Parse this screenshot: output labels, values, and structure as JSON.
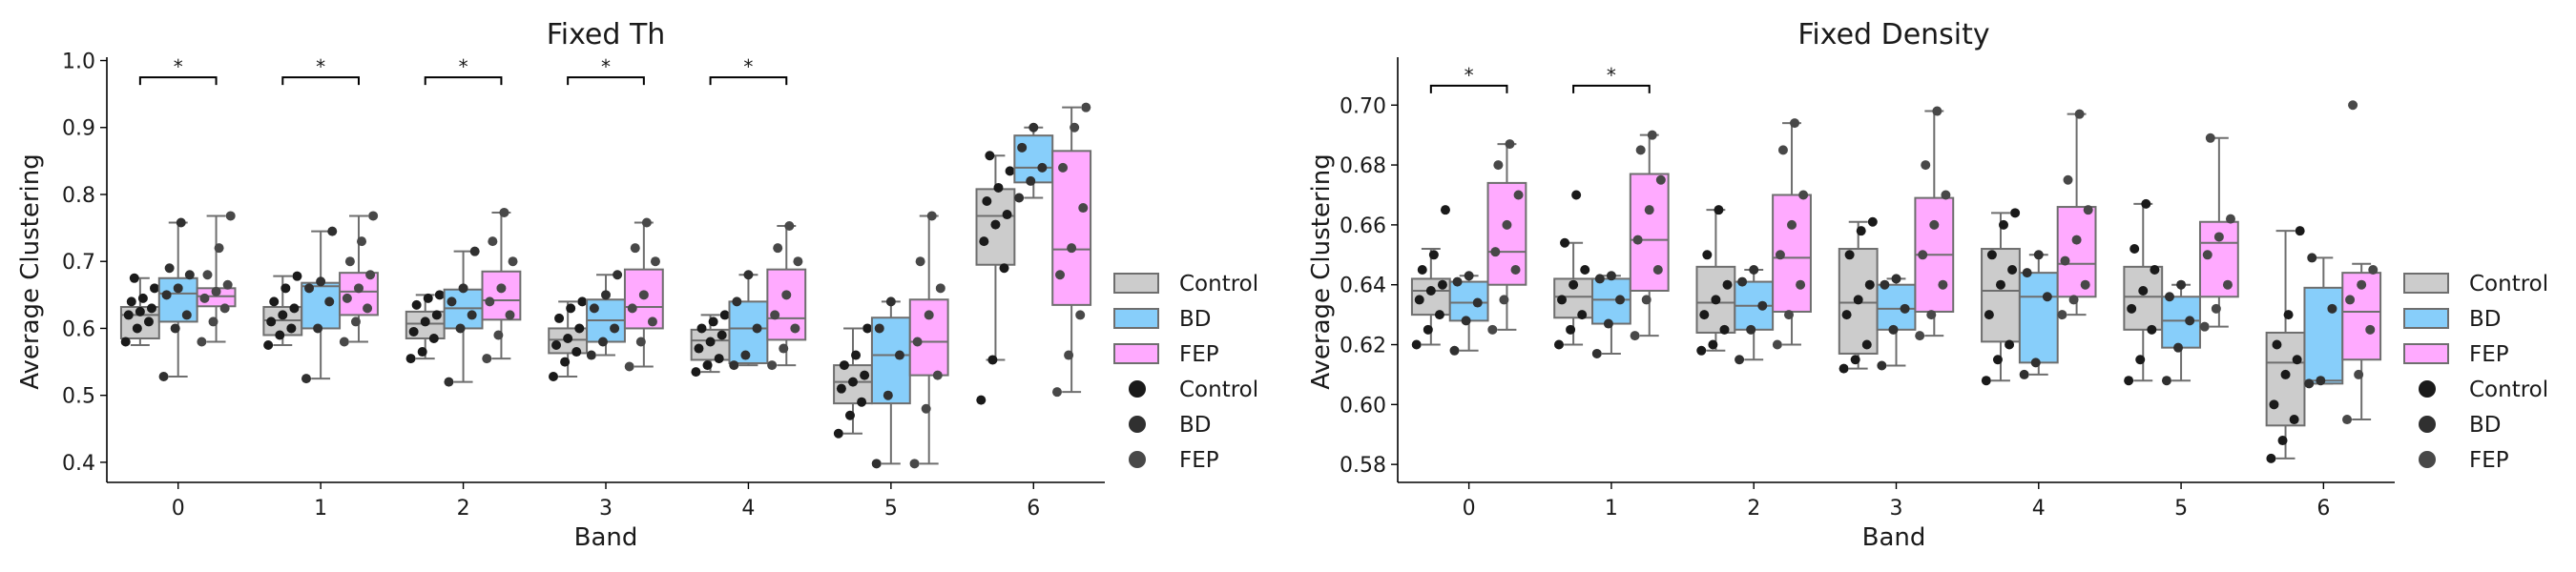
{
  "chart_data": [
    {
      "type": "box",
      "title": "Fixed Th",
      "xlabel": "Band",
      "ylabel": "Average Clustering",
      "categories": [
        "0",
        "1",
        "2",
        "3",
        "4",
        "5",
        "6"
      ],
      "ylim": [
        0.37,
        1.005
      ],
      "yticks": [
        0.4,
        0.5,
        0.6,
        0.7,
        0.8,
        0.9,
        1.0
      ],
      "ytick_labels": [
        "0.4",
        "0.5",
        "0.6",
        "0.7",
        "0.8",
        "0.9",
        "1.0"
      ],
      "legend_box_entries": [
        "Control",
        "BD",
        "FEP"
      ],
      "legend_point_entries": [
        "Control",
        "BD",
        "FEP"
      ],
      "significance": [
        {
          "category": "0",
          "label": "*",
          "y": 0.975
        },
        {
          "category": "1",
          "label": "*",
          "y": 0.975
        },
        {
          "category": "2",
          "label": "*",
          "y": 0.975
        },
        {
          "category": "3",
          "label": "*",
          "y": 0.975
        },
        {
          "category": "4",
          "label": "*",
          "y": 0.975
        }
      ],
      "series": [
        {
          "name": "Control",
          "boxes": [
            {
              "whislo": 0.575,
              "q1": 0.585,
              "med": 0.62,
              "q3": 0.632,
              "whishi": 0.675,
              "points": [
                0.58,
                0.6,
                0.61,
                0.62,
                0.625,
                0.63,
                0.64,
                0.645,
                0.66,
                0.675
              ]
            },
            {
              "whislo": 0.575,
              "q1": 0.59,
              "med": 0.612,
              "q3": 0.632,
              "whishi": 0.678,
              "points": [
                0.575,
                0.59,
                0.6,
                0.61,
                0.62,
                0.63,
                0.64,
                0.66,
                0.678
              ]
            },
            {
              "whislo": 0.555,
              "q1": 0.585,
              "med": 0.607,
              "q3": 0.625,
              "whishi": 0.65,
              "points": [
                0.555,
                0.565,
                0.585,
                0.595,
                0.61,
                0.62,
                0.635,
                0.645,
                0.65
              ]
            },
            {
              "whislo": 0.528,
              "q1": 0.563,
              "med": 0.583,
              "q3": 0.6,
              "whishi": 0.64,
              "points": [
                0.528,
                0.55,
                0.565,
                0.575,
                0.585,
                0.6,
                0.615,
                0.63,
                0.64
              ]
            },
            {
              "whislo": 0.535,
              "q1": 0.553,
              "med": 0.582,
              "q3": 0.598,
              "whishi": 0.62,
              "points": [
                0.535,
                0.545,
                0.555,
                0.57,
                0.58,
                0.59,
                0.6,
                0.61,
                0.62
              ]
            },
            {
              "whislo": 0.443,
              "q1": 0.488,
              "med": 0.52,
              "q3": 0.545,
              "whishi": 0.6,
              "points": [
                0.443,
                0.47,
                0.49,
                0.51,
                0.52,
                0.53,
                0.545,
                0.56,
                0.6
              ]
            },
            {
              "whislo": 0.553,
              "q1": 0.695,
              "med": 0.768,
              "q3": 0.808,
              "whishi": 0.858,
              "points": [
                0.493,
                0.553,
                0.69,
                0.73,
                0.755,
                0.77,
                0.79,
                0.81,
                0.835,
                0.858
              ]
            }
          ]
        },
        {
          "name": "BD",
          "boxes": [
            {
              "whislo": 0.528,
              "q1": 0.61,
              "med": 0.652,
              "q3": 0.675,
              "whishi": 0.758,
              "points": [
                0.528,
                0.6,
                0.62,
                0.65,
                0.66,
                0.68,
                0.69,
                0.758
              ]
            },
            {
              "whislo": 0.525,
              "q1": 0.6,
              "med": 0.663,
              "q3": 0.668,
              "whishi": 0.745,
              "points": [
                0.525,
                0.6,
                0.64,
                0.66,
                0.67,
                0.745
              ]
            },
            {
              "whislo": 0.52,
              "q1": 0.6,
              "med": 0.63,
              "q3": 0.658,
              "whishi": 0.715,
              "points": [
                0.52,
                0.6,
                0.62,
                0.64,
                0.66,
                0.715
              ]
            },
            {
              "whislo": 0.56,
              "q1": 0.58,
              "med": 0.612,
              "q3": 0.643,
              "whishi": 0.68,
              "points": [
                0.56,
                0.58,
                0.6,
                0.63,
                0.65,
                0.68
              ]
            },
            {
              "whislo": 0.545,
              "q1": 0.548,
              "med": 0.6,
              "q3": 0.64,
              "whishi": 0.68,
              "points": [
                0.545,
                0.56,
                0.6,
                0.64,
                0.68
              ]
            },
            {
              "whislo": 0.398,
              "q1": 0.488,
              "med": 0.56,
              "q3": 0.616,
              "whishi": 0.64,
              "points": [
                0.398,
                0.5,
                0.56,
                0.6,
                0.64
              ]
            },
            {
              "whislo": 0.795,
              "q1": 0.818,
              "med": 0.84,
              "q3": 0.888,
              "whishi": 0.9,
              "points": [
                0.795,
                0.82,
                0.84,
                0.87,
                0.9
              ]
            }
          ]
        },
        {
          "name": "FEP",
          "boxes": [
            {
              "whislo": 0.58,
              "q1": 0.633,
              "med": 0.648,
              "q3": 0.66,
              "whishi": 0.768,
              "points": [
                0.58,
                0.61,
                0.63,
                0.645,
                0.655,
                0.665,
                0.68,
                0.72,
                0.768
              ]
            },
            {
              "whislo": 0.58,
              "q1": 0.62,
              "med": 0.655,
              "q3": 0.683,
              "whishi": 0.768,
              "points": [
                0.58,
                0.61,
                0.63,
                0.645,
                0.66,
                0.68,
                0.7,
                0.73,
                0.768
              ]
            },
            {
              "whislo": 0.555,
              "q1": 0.613,
              "med": 0.642,
              "q3": 0.685,
              "whishi": 0.773,
              "points": [
                0.555,
                0.59,
                0.62,
                0.64,
                0.66,
                0.7,
                0.73,
                0.773
              ]
            },
            {
              "whislo": 0.543,
              "q1": 0.6,
              "med": 0.632,
              "q3": 0.688,
              "whishi": 0.758,
              "points": [
                0.543,
                0.58,
                0.61,
                0.63,
                0.65,
                0.7,
                0.72,
                0.758
              ]
            },
            {
              "whislo": 0.545,
              "q1": 0.583,
              "med": 0.615,
              "q3": 0.688,
              "whishi": 0.753,
              "points": [
                0.545,
                0.57,
                0.6,
                0.62,
                0.65,
                0.7,
                0.72,
                0.753
              ]
            },
            {
              "whislo": 0.398,
              "q1": 0.53,
              "med": 0.58,
              "q3": 0.643,
              "whishi": 0.768,
              "points": [
                0.398,
                0.48,
                0.53,
                0.58,
                0.62,
                0.66,
                0.7,
                0.768
              ]
            },
            {
              "whislo": 0.505,
              "q1": 0.635,
              "med": 0.718,
              "q3": 0.865,
              "whishi": 0.93,
              "points": [
                0.505,
                0.56,
                0.62,
                0.68,
                0.72,
                0.78,
                0.84,
                0.9,
                0.93
              ]
            }
          ]
        }
      ]
    },
    {
      "type": "box",
      "title": "Fixed Density",
      "xlabel": "Band",
      "ylabel": "Average Clustering",
      "categories": [
        "0",
        "1",
        "2",
        "3",
        "4",
        "5",
        "6"
      ],
      "ylim": [
        0.574,
        0.716
      ],
      "yticks": [
        0.58,
        0.6,
        0.62,
        0.64,
        0.66,
        0.68,
        0.7
      ],
      "ytick_labels": [
        "0.58",
        "0.60",
        "0.62",
        "0.64",
        "0.66",
        "0.68",
        "0.70"
      ],
      "legend_box_entries": [
        "Control",
        "BD",
        "FEP"
      ],
      "legend_point_entries": [
        "Control",
        "BD",
        "FEP"
      ],
      "significance": [
        {
          "category": "0",
          "label": "*",
          "y": 0.7065
        },
        {
          "category": "1",
          "label": "*",
          "y": 0.7065
        }
      ],
      "series": [
        {
          "name": "Control",
          "boxes": [
            {
              "whislo": 0.62,
              "q1": 0.63,
              "med": 0.638,
              "q3": 0.642,
              "whishi": 0.652,
              "points": [
                0.62,
                0.625,
                0.63,
                0.635,
                0.638,
                0.64,
                0.645,
                0.65,
                0.665
              ]
            },
            {
              "whislo": 0.62,
              "q1": 0.629,
              "med": 0.636,
              "q3": 0.642,
              "whishi": 0.654,
              "points": [
                0.62,
                0.625,
                0.63,
                0.635,
                0.64,
                0.645,
                0.654,
                0.67
              ]
            },
            {
              "whislo": 0.618,
              "q1": 0.624,
              "med": 0.634,
              "q3": 0.646,
              "whishi": 0.665,
              "points": [
                0.618,
                0.62,
                0.625,
                0.63,
                0.635,
                0.64,
                0.65,
                0.665
              ]
            },
            {
              "whislo": 0.612,
              "q1": 0.617,
              "med": 0.634,
              "q3": 0.652,
              "whishi": 0.661,
              "points": [
                0.612,
                0.615,
                0.62,
                0.63,
                0.635,
                0.64,
                0.65,
                0.658,
                0.661
              ]
            },
            {
              "whislo": 0.608,
              "q1": 0.621,
              "med": 0.638,
              "q3": 0.652,
              "whishi": 0.664,
              "points": [
                0.608,
                0.615,
                0.62,
                0.63,
                0.64,
                0.645,
                0.65,
                0.66,
                0.664
              ]
            },
            {
              "whislo": 0.608,
              "q1": 0.625,
              "med": 0.636,
              "q3": 0.646,
              "whishi": 0.667,
              "points": [
                0.608,
                0.615,
                0.625,
                0.632,
                0.638,
                0.645,
                0.652,
                0.667
              ]
            },
            {
              "whislo": 0.582,
              "q1": 0.593,
              "med": 0.614,
              "q3": 0.624,
              "whishi": 0.658,
              "points": [
                0.582,
                0.588,
                0.595,
                0.6,
                0.61,
                0.615,
                0.62,
                0.63,
                0.658
              ]
            }
          ]
        },
        {
          "name": "BD",
          "boxes": [
            {
              "whislo": 0.618,
              "q1": 0.628,
              "med": 0.634,
              "q3": 0.641,
              "whishi": 0.643,
              "points": [
                0.618,
                0.628,
                0.634,
                0.641,
                0.643
              ]
            },
            {
              "whislo": 0.617,
              "q1": 0.627,
              "med": 0.635,
              "q3": 0.642,
              "whishi": 0.643,
              "points": [
                0.617,
                0.627,
                0.635,
                0.642,
                0.643
              ]
            },
            {
              "whislo": 0.615,
              "q1": 0.625,
              "med": 0.633,
              "q3": 0.641,
              "whishi": 0.645,
              "points": [
                0.615,
                0.625,
                0.633,
                0.641,
                0.645
              ]
            },
            {
              "whislo": 0.613,
              "q1": 0.625,
              "med": 0.632,
              "q3": 0.64,
              "whishi": 0.642,
              "points": [
                0.613,
                0.625,
                0.632,
                0.64,
                0.642
              ]
            },
            {
              "whislo": 0.61,
              "q1": 0.614,
              "med": 0.636,
              "q3": 0.644,
              "whishi": 0.65,
              "points": [
                0.61,
                0.614,
                0.636,
                0.644,
                0.65
              ]
            },
            {
              "whislo": 0.608,
              "q1": 0.619,
              "med": 0.628,
              "q3": 0.636,
              "whishi": 0.64,
              "points": [
                0.608,
                0.619,
                0.628,
                0.636,
                0.64
              ]
            },
            {
              "whislo": 0.607,
              "q1": 0.607,
              "med": 0.608,
              "q3": 0.639,
              "whishi": 0.649,
              "points": [
                0.607,
                0.608,
                0.632,
                0.649
              ]
            }
          ]
        },
        {
          "name": "FEP",
          "boxes": [
            {
              "whislo": 0.625,
              "q1": 0.64,
              "med": 0.651,
              "q3": 0.674,
              "whishi": 0.687,
              "points": [
                0.625,
                0.635,
                0.645,
                0.651,
                0.66,
                0.67,
                0.68,
                0.687
              ]
            },
            {
              "whislo": 0.623,
              "q1": 0.638,
              "med": 0.655,
              "q3": 0.677,
              "whishi": 0.69,
              "points": [
                0.623,
                0.635,
                0.645,
                0.655,
                0.665,
                0.675,
                0.685,
                0.69
              ]
            },
            {
              "whislo": 0.62,
              "q1": 0.631,
              "med": 0.649,
              "q3": 0.67,
              "whishi": 0.694,
              "points": [
                0.62,
                0.63,
                0.64,
                0.65,
                0.66,
                0.67,
                0.685,
                0.694
              ]
            },
            {
              "whislo": 0.623,
              "q1": 0.631,
              "med": 0.65,
              "q3": 0.669,
              "whishi": 0.698,
              "points": [
                0.623,
                0.63,
                0.64,
                0.65,
                0.66,
                0.67,
                0.68,
                0.698
              ]
            },
            {
              "whislo": 0.63,
              "q1": 0.636,
              "med": 0.647,
              "q3": 0.666,
              "whishi": 0.697,
              "points": [
                0.63,
                0.635,
                0.64,
                0.648,
                0.655,
                0.665,
                0.675,
                0.697
              ]
            },
            {
              "whislo": 0.626,
              "q1": 0.636,
              "med": 0.654,
              "q3": 0.661,
              "whishi": 0.689,
              "points": [
                0.626,
                0.632,
                0.64,
                0.65,
                0.656,
                0.662,
                0.689
              ]
            },
            {
              "whislo": 0.595,
              "q1": 0.615,
              "med": 0.631,
              "q3": 0.644,
              "whishi": 0.647,
              "points": [
                0.595,
                0.61,
                0.625,
                0.635,
                0.64,
                0.645,
                0.7
              ]
            }
          ]
        }
      ]
    }
  ],
  "colors": {
    "control_box": "#cccccc",
    "bd_box": "#87cefa",
    "fep_box": "#ffaaff",
    "box_edge": "#6e6e6e",
    "control_point": "#1a1a1a",
    "bd_point": "#303030",
    "fep_point": "#484848"
  }
}
